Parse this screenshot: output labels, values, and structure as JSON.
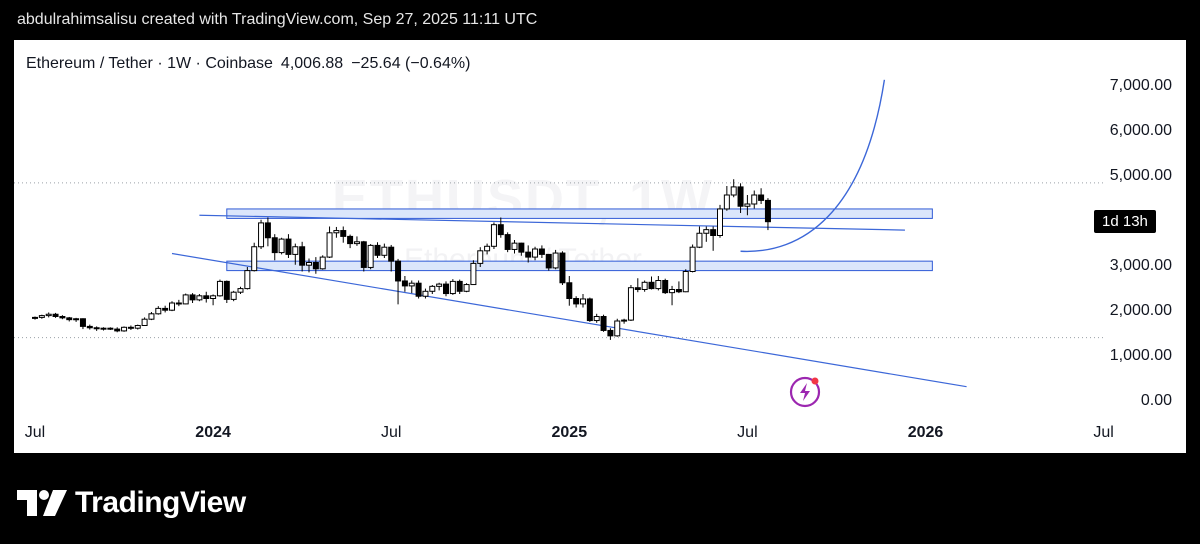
{
  "attribution": "abdulrahimsalisu created with TradingView.com, Sep 27, 2025 11:11 UTC",
  "legend": {
    "pair": "Ethereum / Tether · 1W · Coinbase",
    "price": "4,006.88",
    "change": "−25.64 (−0.64%)"
  },
  "watermark": {
    "symbol": "ETHUSDT, 1W",
    "name": "Ethereum / Tether"
  },
  "countdown": "1d 13h",
  "brand": "TradingView",
  "colors": {
    "up": "#ffffff",
    "down": "#000000",
    "zone_fill": "#dbe6fb",
    "zone_stroke": "#2f5ad6",
    "line": "#3c67d8"
  },
  "chart_data": {
    "type": "candlestick",
    "interval": "1W",
    "ylim": [
      0,
      7000
    ],
    "y_ticks": [
      "7,000.00",
      "6,000.00",
      "5,000.00",
      "3,000.00",
      "2,000.00",
      "1,000.00",
      "0.00"
    ],
    "y_tick_values": [
      7000,
      6000,
      5000,
      3000,
      2000,
      1000,
      0
    ],
    "x_ticks": [
      {
        "label": "Jul",
        "week": 0,
        "bold": false
      },
      {
        "label": "2024",
        "week": 26,
        "bold": true
      },
      {
        "label": "Jul",
        "week": 52,
        "bold": false
      },
      {
        "label": "2025",
        "week": 78,
        "bold": true
      },
      {
        "label": "Jul",
        "week": 104,
        "bold": false
      },
      {
        "label": "2026",
        "week": 130,
        "bold": true
      },
      {
        "label": "Jul",
        "week": 156,
        "bold": false
      }
    ],
    "dotted_levels": [
      4870,
      1430
    ],
    "candles": [
      [
        1860,
        1900,
        1830,
        1880
      ],
      [
        1880,
        1940,
        1850,
        1920
      ],
      [
        1920,
        1990,
        1880,
        1950
      ],
      [
        1950,
        1980,
        1870,
        1900
      ],
      [
        1900,
        1930,
        1840,
        1870
      ],
      [
        1870,
        1890,
        1790,
        1830
      ],
      [
        1830,
        1870,
        1780,
        1850
      ],
      [
        1850,
        1860,
        1620,
        1680
      ],
      [
        1680,
        1720,
        1610,
        1650
      ],
      [
        1650,
        1680,
        1580,
        1630
      ],
      [
        1630,
        1660,
        1590,
        1640
      ],
      [
        1640,
        1660,
        1600,
        1620
      ],
      [
        1620,
        1660,
        1550,
        1580
      ],
      [
        1580,
        1680,
        1560,
        1660
      ],
      [
        1660,
        1700,
        1600,
        1640
      ],
      [
        1640,
        1720,
        1610,
        1700
      ],
      [
        1700,
        1880,
        1690,
        1840
      ],
      [
        1840,
        2000,
        1820,
        1960
      ],
      [
        1960,
        2130,
        1940,
        2080
      ],
      [
        2080,
        2140,
        1990,
        2040
      ],
      [
        2040,
        2240,
        2020,
        2200
      ],
      [
        2200,
        2270,
        2130,
        2180
      ],
      [
        2180,
        2410,
        2170,
        2380
      ],
      [
        2380,
        2420,
        2200,
        2270
      ],
      [
        2270,
        2400,
        2240,
        2360
      ],
      [
        2360,
        2450,
        2210,
        2300
      ],
      [
        2300,
        2390,
        2150,
        2360
      ],
      [
        2360,
        2720,
        2340,
        2680
      ],
      [
        2680,
        2700,
        2200,
        2280
      ],
      [
        2280,
        2470,
        2240,
        2440
      ],
      [
        2440,
        2560,
        2400,
        2520
      ],
      [
        2520,
        3000,
        2500,
        2920
      ],
      [
        2920,
        3540,
        2900,
        3450
      ],
      [
        3450,
        4050,
        3400,
        3980
      ],
      [
        3980,
        4100,
        3460,
        3650
      ],
      [
        3650,
        3730,
        3150,
        3320
      ],
      [
        3320,
        3650,
        3280,
        3620
      ],
      [
        3620,
        3730,
        3200,
        3280
      ],
      [
        3280,
        3520,
        3050,
        3450
      ],
      [
        3450,
        3560,
        2900,
        3040
      ],
      [
        3040,
        3190,
        2880,
        3100
      ],
      [
        3100,
        3220,
        2850,
        2960
      ],
      [
        2960,
        3260,
        2940,
        3220
      ],
      [
        3220,
        3900,
        3200,
        3760
      ],
      [
        3760,
        3890,
        3650,
        3810
      ],
      [
        3810,
        3900,
        3540,
        3680
      ],
      [
        3680,
        3720,
        3420,
        3520
      ],
      [
        3520,
        3680,
        3470,
        3560
      ],
      [
        3560,
        3580,
        2900,
        2990
      ],
      [
        2990,
        3510,
        2950,
        3480
      ],
      [
        3480,
        3550,
        3200,
        3260
      ],
      [
        3260,
        3520,
        3200,
        3440
      ],
      [
        3440,
        3490,
        2900,
        3130
      ],
      [
        3130,
        3180,
        2170,
        2690
      ],
      [
        2690,
        2800,
        2450,
        2580
      ],
      [
        2580,
        2700,
        2420,
        2640
      ],
      [
        2640,
        2700,
        2300,
        2350
      ],
      [
        2350,
        2520,
        2300,
        2460
      ],
      [
        2460,
        2600,
        2400,
        2570
      ],
      [
        2570,
        2650,
        2480,
        2620
      ],
      [
        2620,
        2680,
        2350,
        2410
      ],
      [
        2410,
        2730,
        2380,
        2680
      ],
      [
        2680,
        2720,
        2400,
        2460
      ],
      [
        2460,
        2640,
        2440,
        2610
      ],
      [
        2610,
        3150,
        2600,
        3080
      ],
      [
        3080,
        3440,
        3000,
        3360
      ],
      [
        3360,
        3520,
        3280,
        3460
      ],
      [
        3460,
        3990,
        3400,
        3940
      ],
      [
        3940,
        4100,
        3650,
        3720
      ],
      [
        3720,
        3770,
        3330,
        3390
      ],
      [
        3390,
        3600,
        3300,
        3530
      ],
      [
        3530,
        3540,
        3250,
        3330
      ],
      [
        3330,
        3480,
        3100,
        3220
      ],
      [
        3220,
        3450,
        3150,
        3400
      ],
      [
        3400,
        3480,
        3200,
        3280
      ],
      [
        3280,
        3290,
        2920,
        2980
      ],
      [
        2980,
        3380,
        2950,
        3310
      ],
      [
        3310,
        3350,
        2600,
        2650
      ],
      [
        2650,
        2800,
        2140,
        2300
      ],
      [
        2300,
        2350,
        2100,
        2180
      ],
      [
        2180,
        2400,
        2100,
        2290
      ],
      [
        2290,
        2320,
        1780,
        1810
      ],
      [
        1810,
        1960,
        1760,
        1900
      ],
      [
        1900,
        1940,
        1560,
        1590
      ],
      [
        1590,
        1640,
        1380,
        1470
      ],
      [
        1470,
        1850,
        1450,
        1800
      ],
      [
        1800,
        1850,
        1740,
        1820
      ],
      [
        1820,
        2600,
        1800,
        2540
      ],
      [
        2540,
        2750,
        2440,
        2500
      ],
      [
        2500,
        2700,
        2450,
        2660
      ],
      [
        2660,
        2790,
        2500,
        2520
      ],
      [
        2520,
        2800,
        2480,
        2700
      ],
      [
        2700,
        2740,
        2400,
        2430
      ],
      [
        2430,
        2580,
        2150,
        2500
      ],
      [
        2500,
        2680,
        2420,
        2450
      ],
      [
        2450,
        2950,
        2440,
        2900
      ],
      [
        2900,
        3500,
        2880,
        3440
      ],
      [
        3440,
        3900,
        3420,
        3750
      ],
      [
        3750,
        3900,
        3560,
        3830
      ],
      [
        3830,
        3900,
        3360,
        3700
      ],
      [
        3700,
        4380,
        3650,
        4290
      ],
      [
        4290,
        4800,
        4250,
        4600
      ],
      [
        4600,
        4950,
        4550,
        4780
      ],
      [
        4780,
        4860,
        4200,
        4350
      ],
      [
        4350,
        4600,
        4150,
        4400
      ],
      [
        4400,
        4700,
        4300,
        4600
      ],
      [
        4600,
        4750,
        4400,
        4480
      ],
      [
        4480,
        4530,
        3820,
        4007
      ]
    ],
    "zones": [
      {
        "week_start": 28,
        "week_end": 131,
        "y_low": 4080,
        "y_high": 4290
      },
      {
        "week_start": 28,
        "week_end": 131,
        "y_low": 2920,
        "y_high": 3130
      }
    ],
    "trendlines": [
      {
        "x1": 24,
        "y1": 4150,
        "x2": 127,
        "y2": 3820
      },
      {
        "x1": 20,
        "y1": 3300,
        "x2": 136,
        "y2": 340
      }
    ],
    "projection_curve": [
      {
        "week": 103,
        "price": 3350
      },
      {
        "week": 112,
        "price": 3280
      },
      {
        "week": 121,
        "price": 4200
      },
      {
        "week": 124,
        "price": 7160
      }
    ]
  }
}
